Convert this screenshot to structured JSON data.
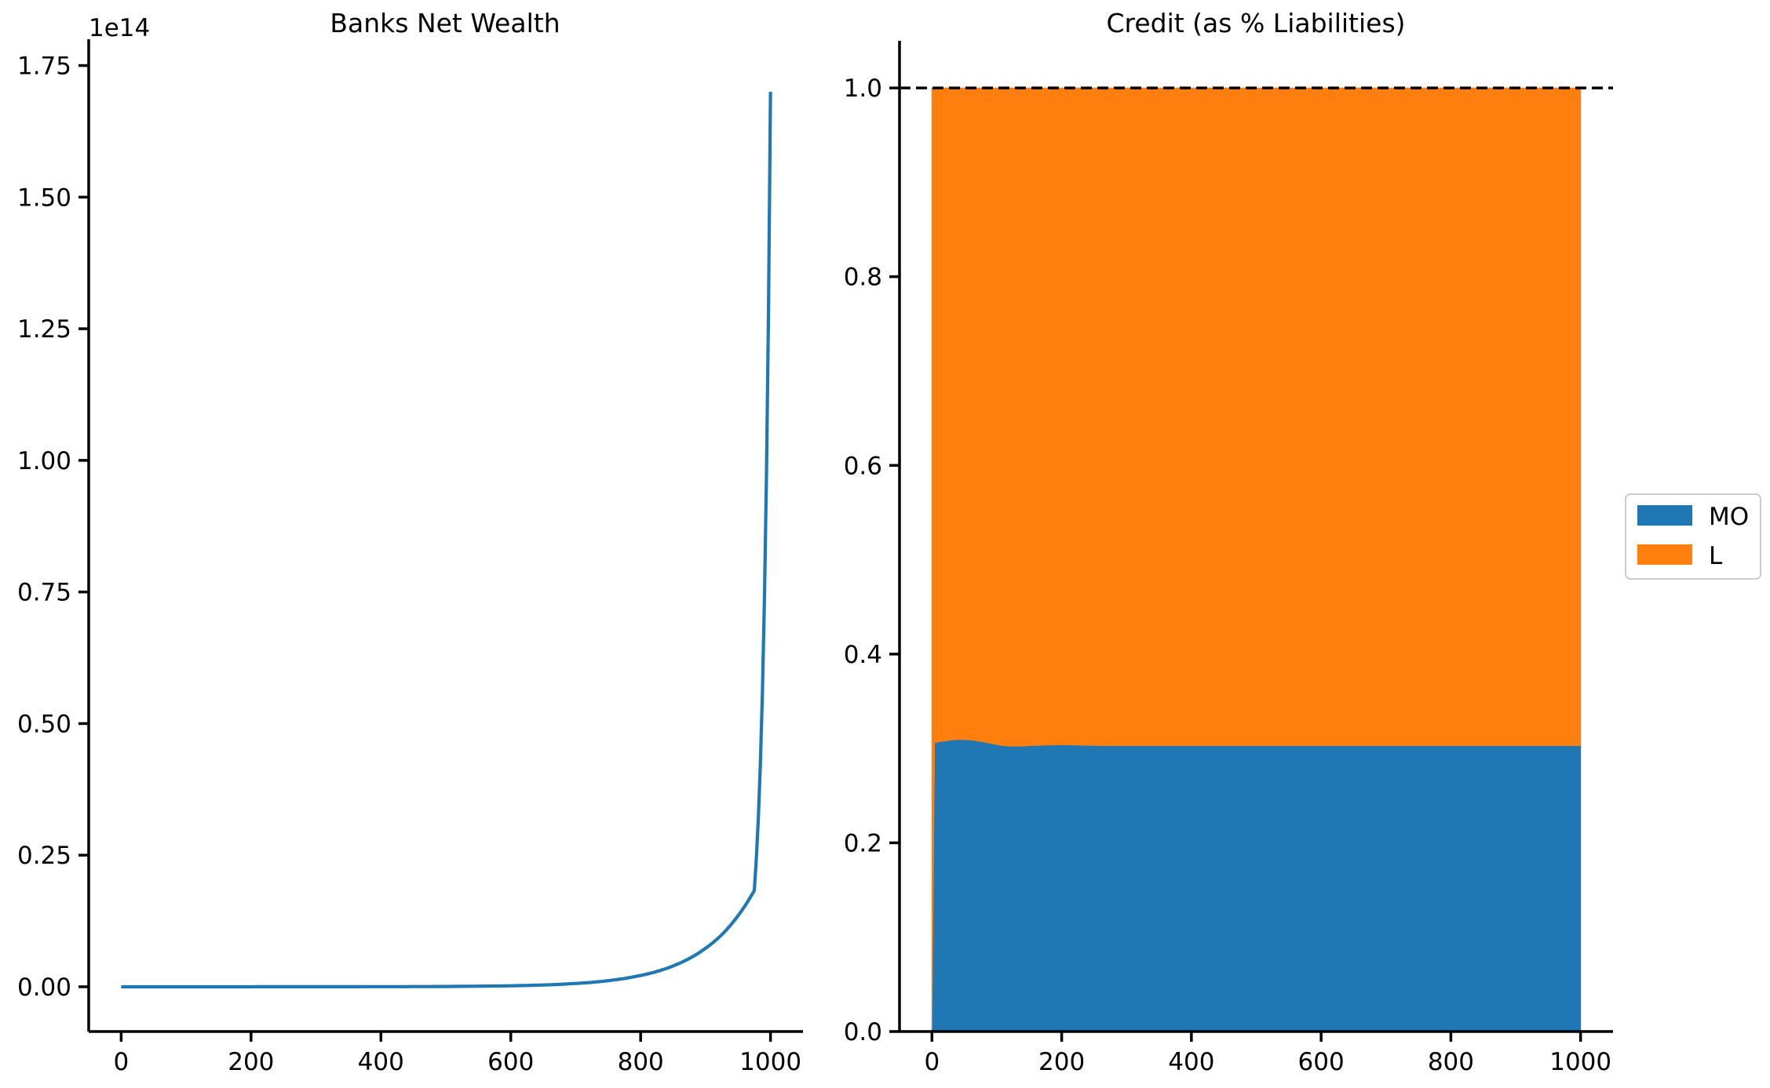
{
  "chart_data": [
    {
      "type": "line",
      "title": "Banks Net Wealth",
      "xlabel": "",
      "ylabel": "",
      "offset_text": "1e14",
      "xlim": [
        -50,
        1050
      ],
      "ylim": [
        -0.085,
        1.8
      ],
      "x_ticks": [
        0,
        200,
        400,
        600,
        800,
        1000
      ],
      "x_tick_labels": [
        "0",
        "200",
        "400",
        "600",
        "800",
        "1000"
      ],
      "y_ticks": [
        0,
        0.25,
        0.5,
        0.75,
        1.0,
        1.25,
        1.5,
        1.75
      ],
      "y_tick_labels": [
        "0.00",
        "0.25",
        "0.50",
        "0.75",
        "1.00",
        "1.25",
        "1.50",
        "1.75"
      ],
      "grid": false,
      "series": [
        {
          "color": "#1f77b4",
          "x": [
            0,
            100,
            200,
            300,
            400,
            500,
            600,
            650,
            700,
            725,
            750,
            775,
            800,
            825,
            850,
            875,
            900,
            925,
            950,
            975,
            1000
          ],
          "y": [
            0,
            0,
            0,
            0.0001,
            0.0002,
            0.0006,
            0.0019,
            0.0034,
            0.0063,
            0.0085,
            0.0116,
            0.0158,
            0.0214,
            0.0291,
            0.0396,
            0.0538,
            0.0731,
            0.099,
            0.135,
            0.183,
            1.7
          ]
        }
      ]
    },
    {
      "type": "area",
      "title": "Credit (as % Liabilities)",
      "xlabel": "",
      "ylabel": "",
      "stacked": true,
      "xlim": [
        -50,
        1050
      ],
      "ylim": [
        0,
        1.05
      ],
      "x_ticks": [
        0,
        200,
        400,
        600,
        800,
        1000
      ],
      "x_tick_labels": [
        "0",
        "200",
        "400",
        "600",
        "800",
        "1000"
      ],
      "y_ticks": [
        0,
        0.2,
        0.4,
        0.6,
        0.8,
        1.0
      ],
      "y_tick_labels": [
        "0.0",
        "0.2",
        "0.4",
        "0.6",
        "0.8",
        "1.0"
      ],
      "grid": false,
      "reference_line": {
        "y": 1.0,
        "style": "dashed",
        "color": "#000000"
      },
      "legend_position": "center-right-outside",
      "x": [
        0,
        4,
        10,
        20,
        30,
        40,
        50,
        60,
        70,
        80,
        90,
        100,
        110,
        120,
        130,
        140,
        150,
        175,
        200,
        225,
        250,
        275,
        300,
        350,
        400,
        500,
        600,
        700,
        800,
        900,
        1000
      ],
      "series": [
        {
          "name": "MO",
          "color": "#1f77b4",
          "values": [
            0,
            0.306,
            0.307,
            0.308,
            0.309,
            0.3095,
            0.3095,
            0.309,
            0.308,
            0.307,
            0.3055,
            0.304,
            0.303,
            0.3025,
            0.3025,
            0.3025,
            0.303,
            0.3035,
            0.304,
            0.3035,
            0.3032,
            0.303,
            0.303,
            0.303,
            0.303,
            0.303,
            0.303,
            0.303,
            0.303,
            0.303,
            0.303
          ]
        },
        {
          "name": "L",
          "color": "#ff7f0e",
          "values": [
            1.0,
            0.694,
            0.693,
            0.692,
            0.691,
            0.6905,
            0.6905,
            0.691,
            0.692,
            0.693,
            0.6945,
            0.696,
            0.697,
            0.6975,
            0.6975,
            0.6975,
            0.697,
            0.6965,
            0.696,
            0.6965,
            0.6968,
            0.697,
            0.697,
            0.697,
            0.697,
            0.697,
            0.697,
            0.697,
            0.697,
            0.697,
            0.697
          ]
        }
      ]
    }
  ]
}
